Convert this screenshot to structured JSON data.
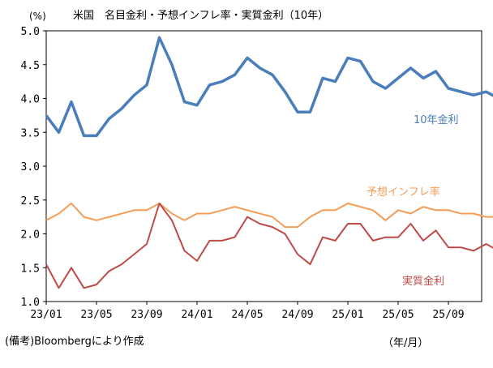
{
  "chart_data": {
    "type": "line",
    "title": "米国　名目金利・予想インフレ率・実質金利（10年）",
    "ylabel": "(%)",
    "xlabel": "（年/月）",
    "note": "(備考)Bloombergにより作成",
    "ylim": [
      1.0,
      5.0
    ],
    "yticks": [
      "1.0",
      "1.5",
      "2.0",
      "2.5",
      "3.0",
      "3.5",
      "4.0",
      "4.5",
      "5.0"
    ],
    "xticks": [
      "23/01",
      "23/05",
      "23/09",
      "24/01",
      "24/05",
      "24/09",
      "25/01",
      "25/05",
      "25/09"
    ],
    "x_months_from_2023_01": [
      0,
      1,
      2,
      3,
      4,
      5,
      6,
      7,
      8,
      9,
      10,
      11,
      12,
      13,
      14,
      15,
      16,
      17,
      18,
      19,
      20,
      21,
      22,
      23,
      24,
      25,
      26,
      27,
      28,
      29,
      30,
      31,
      32,
      33,
      34,
      35,
      36
    ],
    "series": [
      {
        "name": "10年金利",
        "color": "#4a7ebb",
        "values": [
          3.75,
          3.5,
          3.95,
          3.45,
          3.45,
          3.7,
          3.85,
          4.05,
          4.2,
          4.9,
          4.5,
          3.95,
          3.9,
          4.2,
          4.25,
          4.35,
          4.6,
          4.45,
          4.35,
          4.1,
          3.8,
          3.8,
          4.3,
          4.25,
          4.6,
          4.55,
          4.25,
          4.15,
          4.3,
          4.45,
          4.3,
          4.4,
          4.15,
          4.1,
          4.05,
          4.1,
          4.0
        ]
      },
      {
        "name": "予想インフレ率",
        "color": "#f59d56",
        "values": [
          2.2,
          2.3,
          2.45,
          2.25,
          2.2,
          2.25,
          2.3,
          2.35,
          2.35,
          2.45,
          2.3,
          2.2,
          2.3,
          2.3,
          2.35,
          2.4,
          2.35,
          2.3,
          2.25,
          2.1,
          2.1,
          2.25,
          2.35,
          2.35,
          2.45,
          2.4,
          2.35,
          2.2,
          2.35,
          2.3,
          2.4,
          2.35,
          2.35,
          2.3,
          2.3,
          2.25,
          2.25
        ]
      },
      {
        "name": "実質金利",
        "color": "#be4b48",
        "values": [
          1.55,
          1.2,
          1.5,
          1.2,
          1.25,
          1.45,
          1.55,
          1.7,
          1.85,
          2.45,
          2.2,
          1.75,
          1.6,
          1.9,
          1.9,
          1.95,
          2.25,
          2.15,
          2.1,
          2.0,
          1.7,
          1.55,
          1.95,
          1.9,
          2.15,
          2.15,
          1.9,
          1.95,
          1.95,
          2.15,
          1.9,
          2.05,
          1.8,
          1.8,
          1.75,
          1.85,
          1.75
        ]
      }
    ]
  }
}
